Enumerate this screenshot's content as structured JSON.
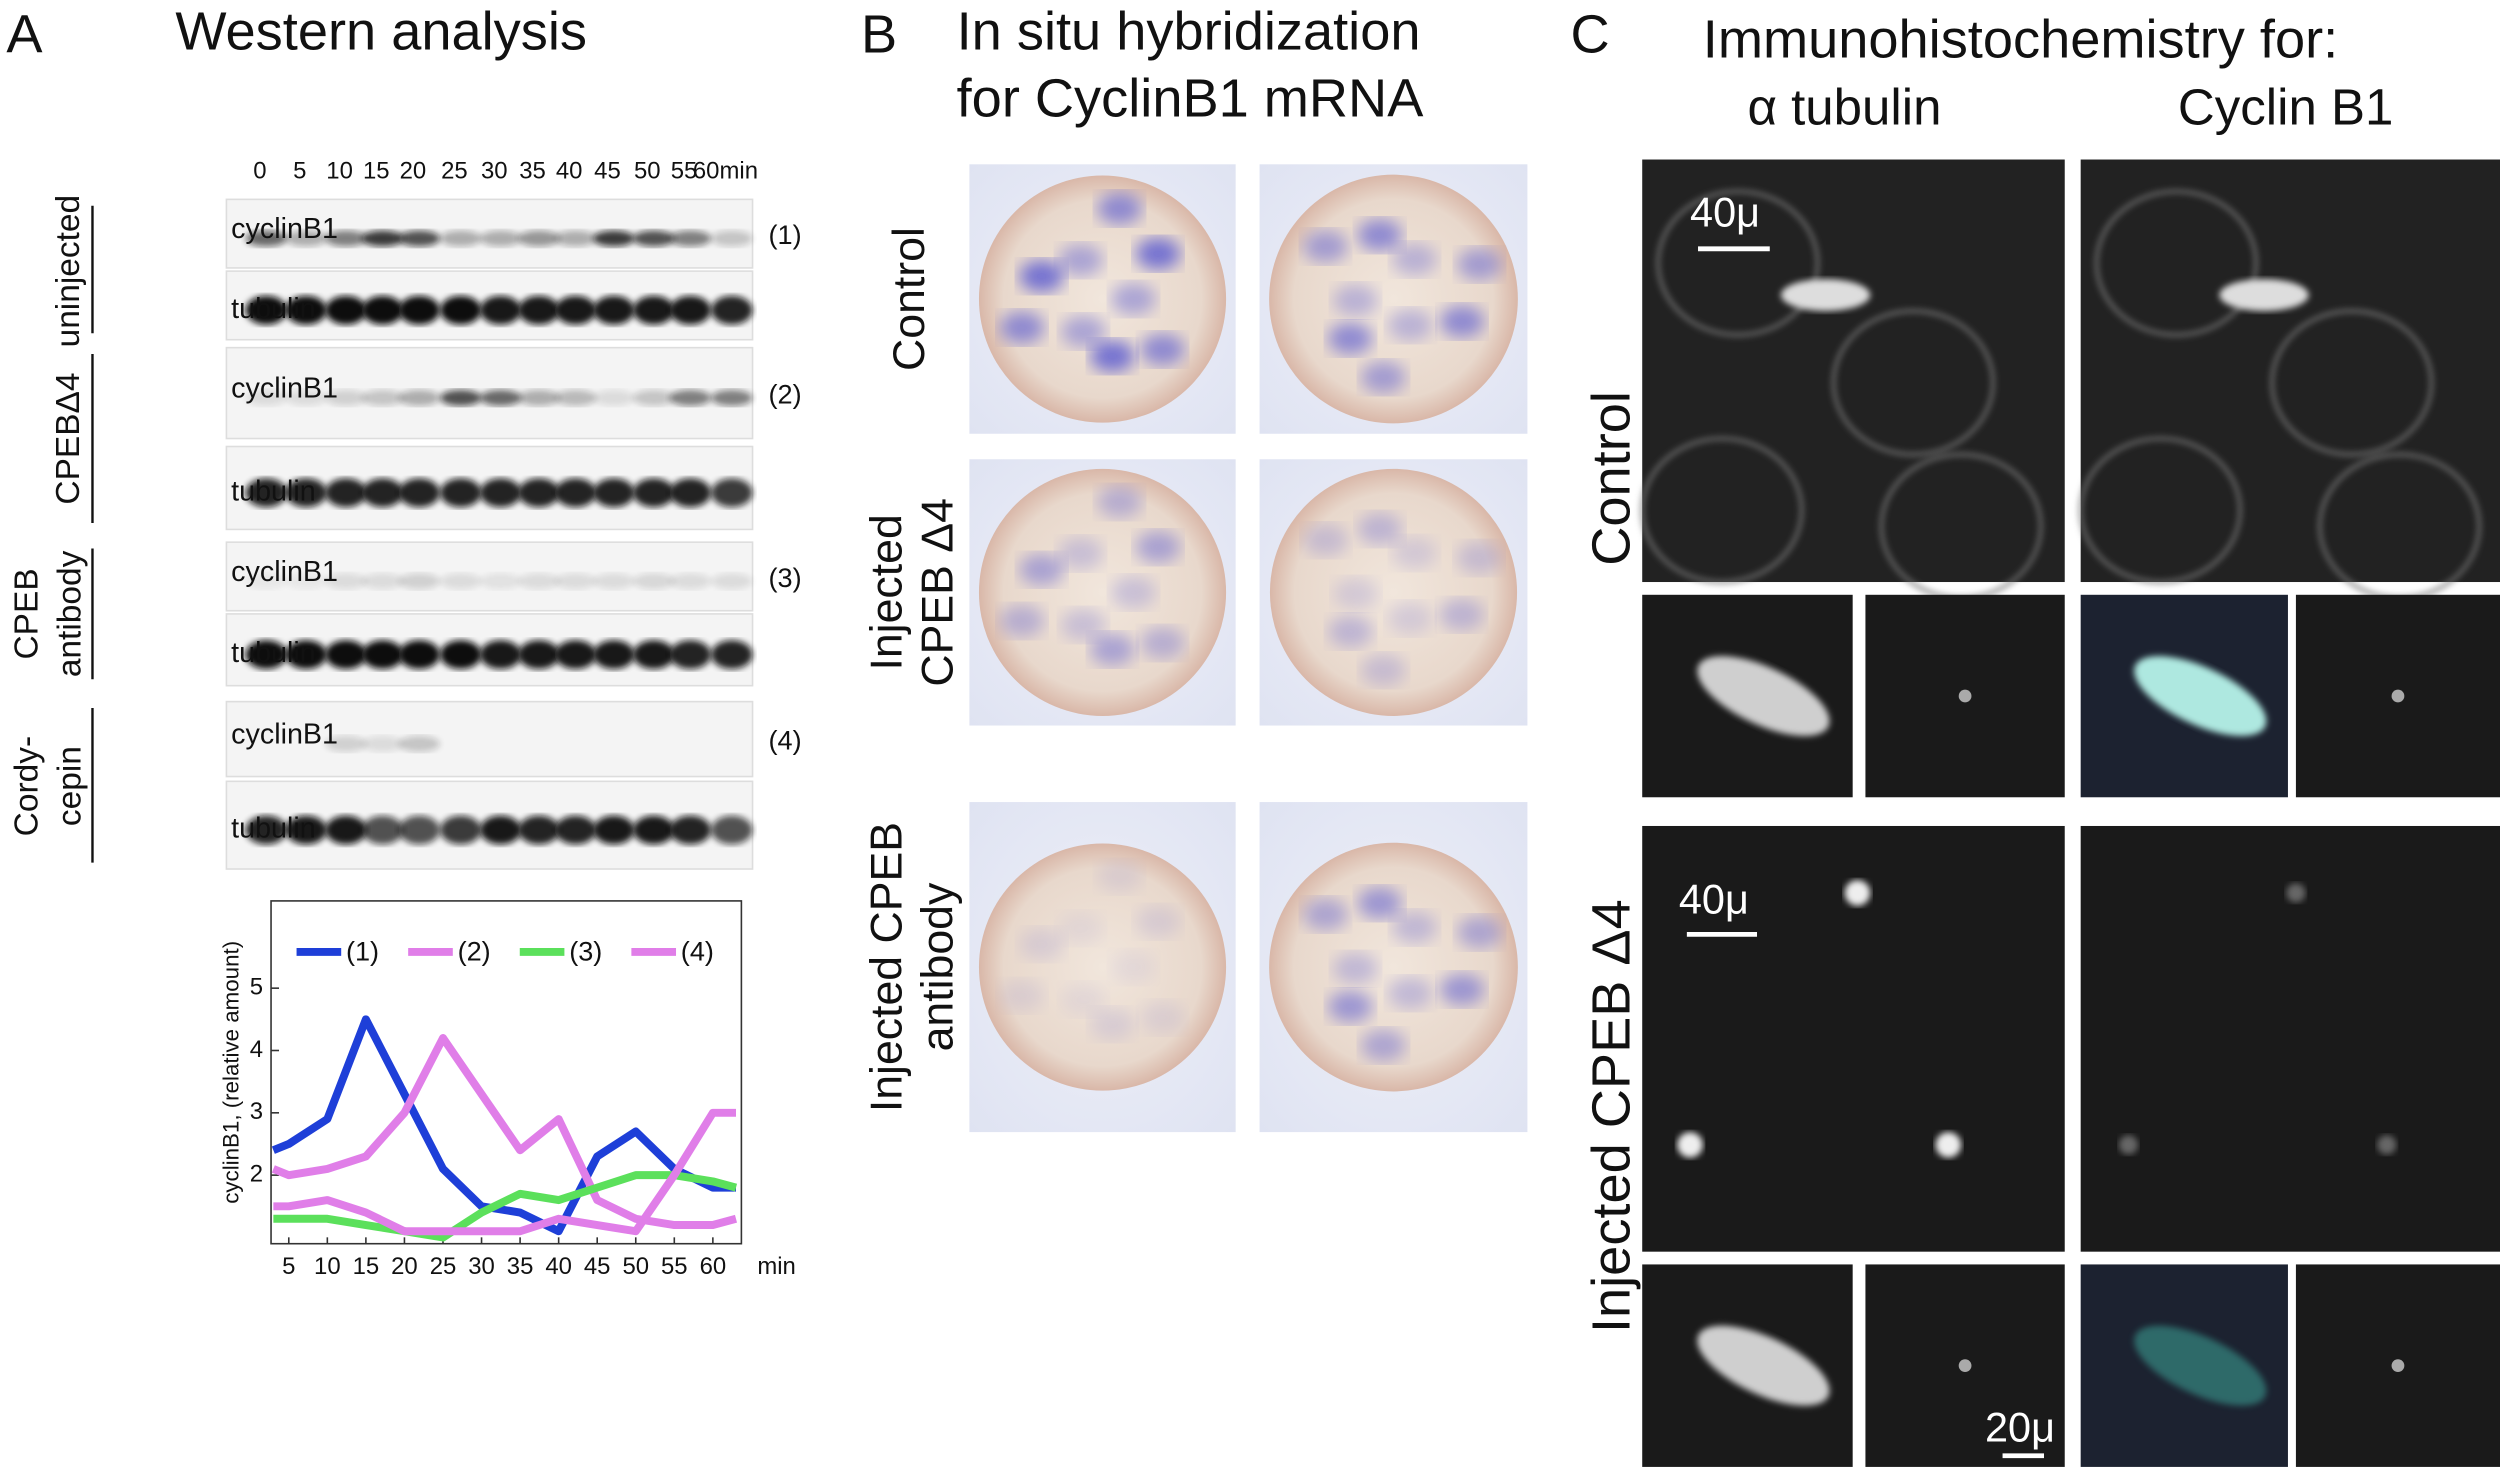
{
  "panel_a": {
    "letter": "A",
    "title": "Western analysis",
    "timepoints": [
      "0",
      "5",
      "10",
      "15",
      "20",
      "25",
      "30",
      "35",
      "40",
      "45",
      "50",
      "55",
      "60min"
    ],
    "rows": [
      {
        "label": [
          "uninjected"
        ],
        "bands": [
          "cyclinB1",
          "tubulin"
        ],
        "number": "(1)"
      },
      {
        "label": [
          "CPEBΔ4"
        ],
        "bands": [
          "cyclinB1",
          "tubulin"
        ],
        "number": "(2)"
      },
      {
        "label": [
          "CPEB",
          "antibody"
        ],
        "bands": [
          "cyclinB1",
          "tubulin"
        ],
        "number": "(3)"
      },
      {
        "label": [
          "Cordy-",
          "cepin"
        ],
        "bands": [
          "cyclinB1",
          "tubulin"
        ],
        "number": "(4)"
      }
    ],
    "graph": {
      "type": "line",
      "ylabel": "cyclinB1, (relative amount)",
      "xlabel": "min",
      "x": [
        3,
        5,
        10,
        15,
        20,
        25,
        30,
        35,
        40,
        45,
        50,
        55,
        60,
        63
      ],
      "xlim": [
        2.7,
        63.7
      ],
      "xticks": [
        5,
        10,
        15,
        20,
        25,
        30,
        35,
        40,
        45,
        50,
        55,
        60
      ],
      "ylim": [
        0.9,
        6.4
      ],
      "yticks": [
        2,
        3,
        4,
        5
      ],
      "series": [
        {
          "name": "(1)",
          "color": "#1e3fd8",
          "values": [
            2.4,
            2.5,
            2.9,
            4.5,
            3.3,
            2.1,
            1.5,
            1.4,
            1.1,
            2.3,
            2.7,
            2.1,
            1.8,
            1.8
          ]
        },
        {
          "name": "(2)",
          "color": "#e07ee8",
          "values": [
            2.1,
            2.0,
            2.1,
            2.3,
            3.0,
            4.2,
            3.3,
            2.4,
            2.9,
            1.6,
            1.3,
            1.2,
            1.2,
            1.3
          ]
        },
        {
          "name": "(3)",
          "color": "#5be05b",
          "values": [
            1.3,
            1.3,
            1.3,
            1.2,
            1.1,
            1.0,
            1.4,
            1.7,
            1.6,
            1.8,
            2.0,
            2.0,
            1.9,
            1.8
          ]
        },
        {
          "name": "(4)",
          "color": "#e07ee8",
          "values": [
            1.5,
            1.5,
            1.6,
            1.4,
            1.1,
            1.1,
            1.1,
            1.1,
            1.3,
            1.2,
            1.1,
            2.0,
            3.0,
            3.0
          ]
        }
      ]
    }
  },
  "panel_b": {
    "letter": "B",
    "title": [
      "In situ hybridization",
      "for CyclinB1 mRNA"
    ],
    "rows": [
      [
        "Control"
      ],
      [
        "Injected",
        "CPEB Δ4"
      ],
      [
        "Injected CPEB",
        "antibody"
      ]
    ]
  },
  "panel_c": {
    "letter": "C",
    "title": "Immunohistochemistry for:",
    "columns": [
      "α tubulin",
      "Cyclin B1"
    ],
    "rows": [
      "Control",
      "Injected CPEB Δ4"
    ],
    "scale_bars": [
      "40μ",
      "40μ",
      "20μ"
    ]
  }
}
